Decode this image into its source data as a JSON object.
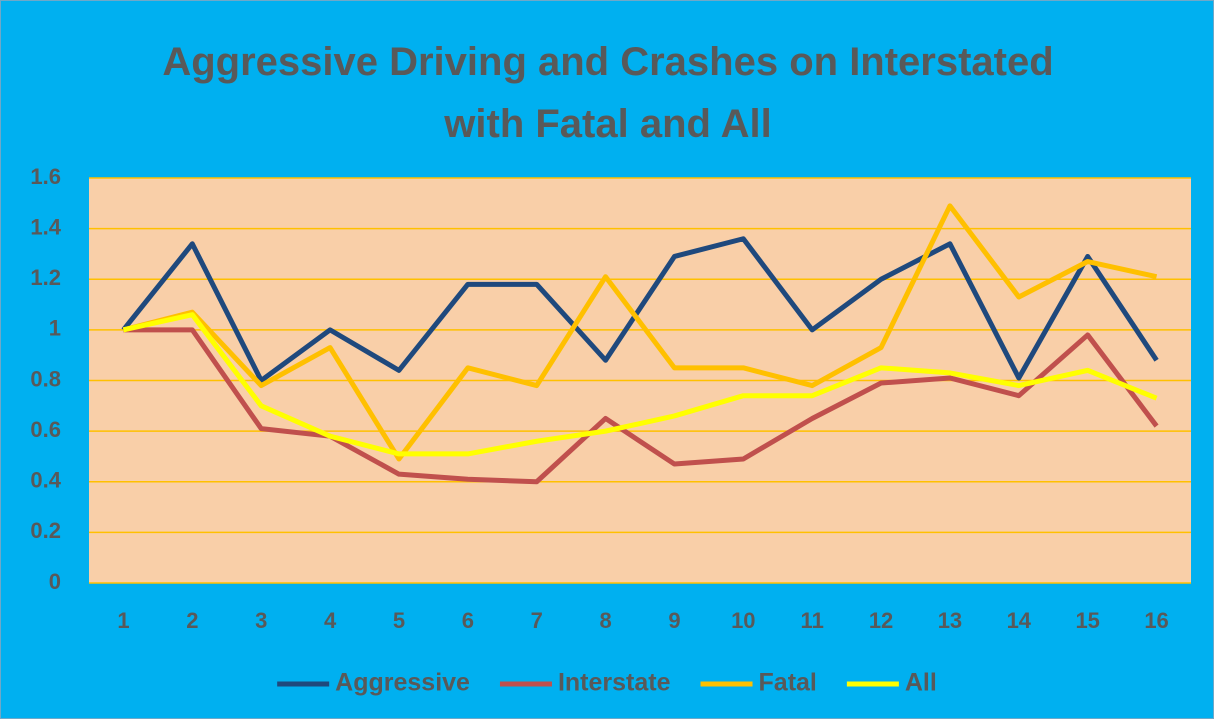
{
  "chart_data": {
    "type": "line",
    "title": "Aggressive Driving and Crashes on Interstated with Fatal and All",
    "categories": [
      "1",
      "2",
      "3",
      "4",
      "5",
      "6",
      "7",
      "8",
      "9",
      "10",
      "11",
      "12",
      "13",
      "14",
      "15",
      "16"
    ],
    "series": [
      {
        "name": "Aggressive",
        "color": "#1F497D",
        "values": [
          1,
          1.34,
          0.8,
          1.0,
          0.84,
          1.18,
          1.18,
          0.88,
          1.29,
          1.36,
          1.0,
          1.2,
          1.34,
          0.81,
          1.29,
          0.88
        ]
      },
      {
        "name": "Interstate",
        "color": "#C0504D",
        "values": [
          1,
          1.0,
          0.61,
          0.58,
          0.43,
          0.41,
          0.4,
          0.65,
          0.47,
          0.49,
          0.65,
          0.79,
          0.81,
          0.74,
          0.98,
          0.62
        ]
      },
      {
        "name": "Fatal",
        "color": "#FFC000",
        "values": [
          1,
          1.07,
          0.78,
          0.93,
          0.49,
          0.85,
          0.78,
          1.21,
          0.85,
          0.85,
          0.78,
          0.93,
          1.49,
          1.13,
          1.27,
          1.21
        ]
      },
      {
        "name": "All",
        "color": "#FFFF00",
        "values": [
          1,
          1.06,
          0.7,
          0.58,
          0.51,
          0.51,
          0.56,
          0.6,
          0.66,
          0.74,
          0.74,
          0.85,
          0.83,
          0.78,
          0.84,
          0.73
        ]
      }
    ],
    "ylim": [
      0,
      1.6
    ],
    "yticks": [
      0,
      0.2,
      0.4,
      0.6,
      0.8,
      1,
      1.2,
      1.4,
      1.6
    ],
    "grid": true,
    "legend": "bottom",
    "plot_background": "#F9CFA8",
    "grid_color": "#FFC000"
  }
}
